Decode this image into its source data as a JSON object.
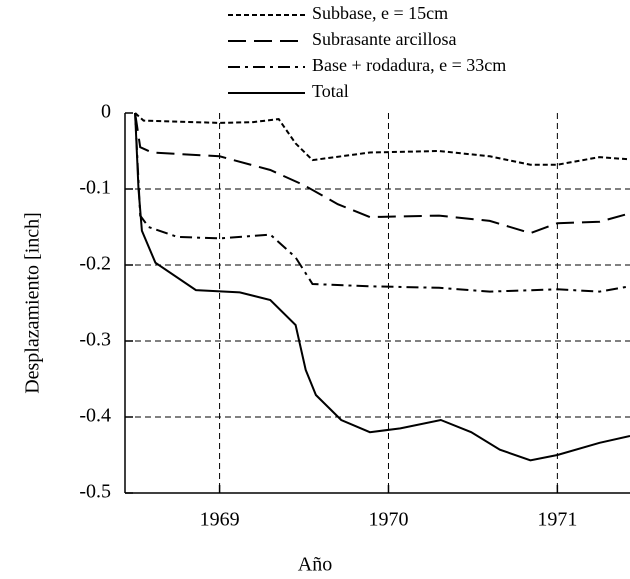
{
  "chart_data": {
    "type": "line",
    "x_label": "Año",
    "y_label": "Desplazamiento [inch]",
    "xlim": [
      1968.44,
      1971.43
    ],
    "xticks": [
      1969,
      1970,
      1971
    ],
    "ylim": [
      -0.5,
      0
    ],
    "yticks": [
      0,
      -0.1,
      -0.2,
      -0.3,
      -0.4,
      -0.5
    ],
    "grid": true,
    "legend": "top",
    "series": [
      {
        "name": "Subbase, e = 15cm",
        "color": "#000000",
        "x": [
          1968.5,
          1968.55,
          1969.0,
          1969.2,
          1969.35,
          1969.45,
          1969.55,
          1969.89,
          1970.3,
          1970.6,
          1970.84,
          1971.0,
          1971.25,
          1971.43
        ],
        "values": [
          0,
          -0.01,
          -0.013,
          -0.012,
          -0.008,
          -0.04,
          -0.062,
          -0.052,
          -0.05,
          -0.057,
          -0.068,
          -0.068,
          -0.058,
          -0.061
        ]
      },
      {
        "name": "Subrasante arcillosa",
        "color": "#000000",
        "x": [
          1968.5,
          1968.53,
          1968.6,
          1969.0,
          1969.3,
          1969.5,
          1969.7,
          1969.89,
          1970.3,
          1970.6,
          1970.84,
          1971.0,
          1971.25,
          1971.43
        ],
        "values": [
          0,
          -0.045,
          -0.052,
          -0.057,
          -0.075,
          -0.095,
          -0.12,
          -0.137,
          -0.135,
          -0.142,
          -0.158,
          -0.145,
          -0.143,
          -0.132
        ]
      },
      {
        "name": "Base + rodadura, e = 33cm",
        "color": "#000000",
        "x": [
          1968.5,
          1968.53,
          1968.58,
          1968.75,
          1969.0,
          1969.3,
          1969.45,
          1969.55,
          1969.89,
          1970.3,
          1970.6,
          1971.0,
          1971.25,
          1971.43
        ],
        "values": [
          0,
          -0.135,
          -0.15,
          -0.163,
          -0.165,
          -0.16,
          -0.19,
          -0.225,
          -0.228,
          -0.23,
          -0.235,
          -0.232,
          -0.235,
          -0.228
        ]
      },
      {
        "name": "Total",
        "color": "#000000",
        "x": [
          1968.5,
          1968.52,
          1968.54,
          1968.62,
          1968.86,
          1969.12,
          1969.3,
          1969.45,
          1969.51,
          1969.57,
          1969.72,
          1969.89,
          1970.07,
          1970.31,
          1970.49,
          1970.66,
          1970.84,
          1971.0,
          1971.25,
          1971.43
        ],
        "values": [
          0,
          -0.1,
          -0.155,
          -0.197,
          -0.233,
          -0.236,
          -0.246,
          -0.279,
          -0.338,
          -0.371,
          -0.404,
          -0.42,
          -0.415,
          -0.404,
          -0.42,
          -0.443,
          -0.457,
          -0.45,
          -0.434,
          -0.425
        ]
      }
    ]
  }
}
